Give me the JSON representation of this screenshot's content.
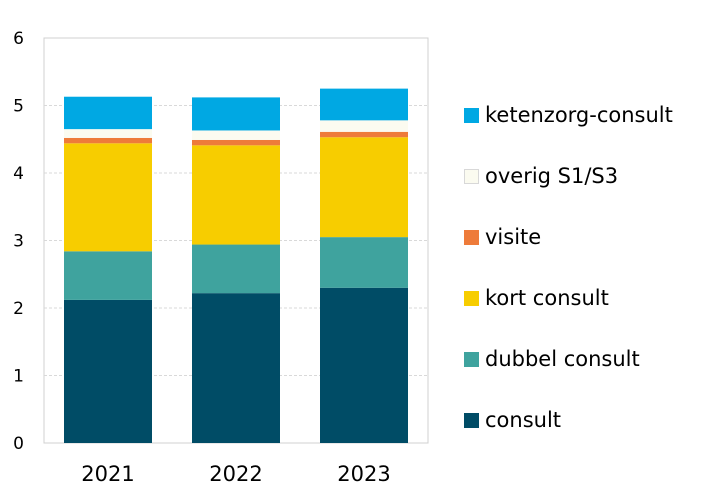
{
  "chart_data": {
    "type": "bar",
    "stacked": true,
    "categories": [
      "2021",
      "2022",
      "2023"
    ],
    "ylim": [
      0,
      6
    ],
    "yticks": [
      "0",
      "1",
      "2",
      "3",
      "4",
      "5",
      "6"
    ],
    "grid": true,
    "legend_position": "right",
    "series": [
      {
        "name": "consult",
        "color": "#004c66",
        "values": [
          2.12,
          2.22,
          2.3
        ]
      },
      {
        "name": "dubbel consult",
        "color": "#3fa39e",
        "values": [
          0.72,
          0.72,
          0.75
        ]
      },
      {
        "name": "kort consult",
        "color": "#f7cd00",
        "values": [
          1.6,
          1.47,
          1.48
        ]
      },
      {
        "name": "visite",
        "color": "#ee7b3a",
        "values": [
          0.08,
          0.08,
          0.08
        ]
      },
      {
        "name": "overig S1/S3",
        "color": "#fbfbf0",
        "values": [
          0.13,
          0.14,
          0.17
        ]
      },
      {
        "name": "ketenzorg-consult",
        "color": "#00a8e3",
        "values": [
          0.48,
          0.49,
          0.47
        ]
      }
    ],
    "legend_order": [
      "ketenzorg-consult",
      "overig S1/S3",
      "visite",
      "kort consult",
      "dubbel consult",
      "consult"
    ]
  }
}
